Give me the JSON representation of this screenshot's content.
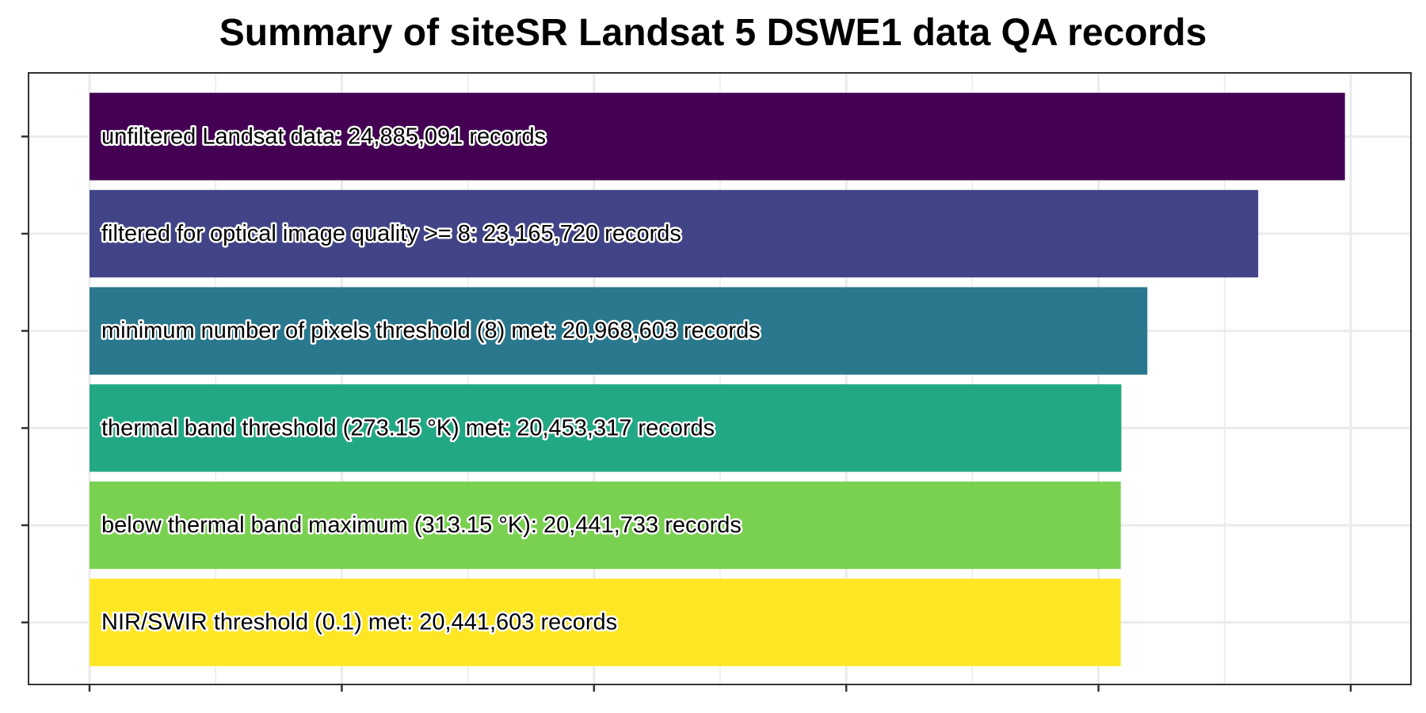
{
  "chart_data": {
    "type": "bar",
    "orientation": "horizontal",
    "title": "Summary of siteSR Landsat 5 DSWE1 data QA records",
    "xlabel": "",
    "ylabel": "",
    "grid": true,
    "legend": "none",
    "x_ticks_labeled": false,
    "y_ticks_labeled": false,
    "xlim": [
      0,
      25000000
    ],
    "bars": [
      {
        "label": "unfiltered Landsat data: 24,885,091 records",
        "value": 24885091,
        "color": "#440154"
      },
      {
        "label": "filtered for optical image quality >= 8: 23,165,720 records",
        "value": 23165720,
        "color": "#414487"
      },
      {
        "label": "minimum number of pixels threshold (8) met: 20,968,603 records",
        "value": 20968603,
        "color": "#2A788E"
      },
      {
        "label": "thermal band threshold (273.15 °K) met: 20,453,317 records",
        "value": 20453317,
        "color": "#22A884"
      },
      {
        "label": "below thermal band maximum (313.15 °K): 20,441,733 records",
        "value": 20441733,
        "color": "#7AD151"
      },
      {
        "label": "NIR/SWIR threshold (0.1) met: 20,441,603 records",
        "value": 20441603,
        "color": "#FDE725"
      }
    ]
  }
}
